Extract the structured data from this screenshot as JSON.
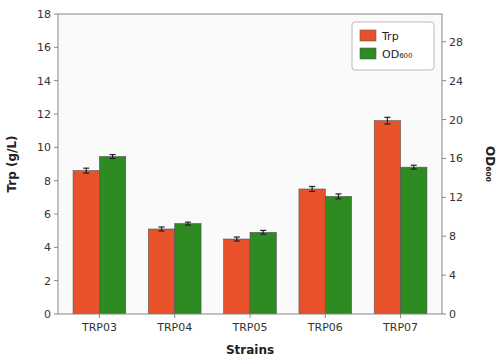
{
  "chart_data": {
    "type": "bar",
    "categories": [
      "TRP03",
      "TRP04",
      "TRP05",
      "TRP06",
      "TRP07"
    ],
    "series": [
      {
        "name": "Trp",
        "color": "#E8522A",
        "values": [
          8.6,
          5.1,
          4.5,
          7.5,
          11.6
        ],
        "errors": [
          0.15,
          0.12,
          0.12,
          0.15,
          0.2
        ]
      },
      {
        "name": "OD₆₀₀",
        "color": "#2E8B22",
        "axis": "y2",
        "values": [
          16.2,
          9.3,
          8.4,
          12.1,
          15.1
        ],
        "errors": [
          0.2,
          0.15,
          0.2,
          0.25,
          0.2
        ]
      }
    ],
    "x_label": "Strains",
    "y_label": "Trp (g/L)",
    "y2_label": "OD₆₀₀",
    "ylim": [
      0,
      18
    ],
    "yticks": [
      0,
      2,
      4,
      6,
      8,
      10,
      12,
      14,
      16,
      18
    ],
    "y2lim": [
      0,
      30.857
    ],
    "y2ticks": [
      0,
      4,
      8,
      12,
      16,
      20,
      24,
      28
    ],
    "grid": false,
    "legend": "upper right"
  }
}
